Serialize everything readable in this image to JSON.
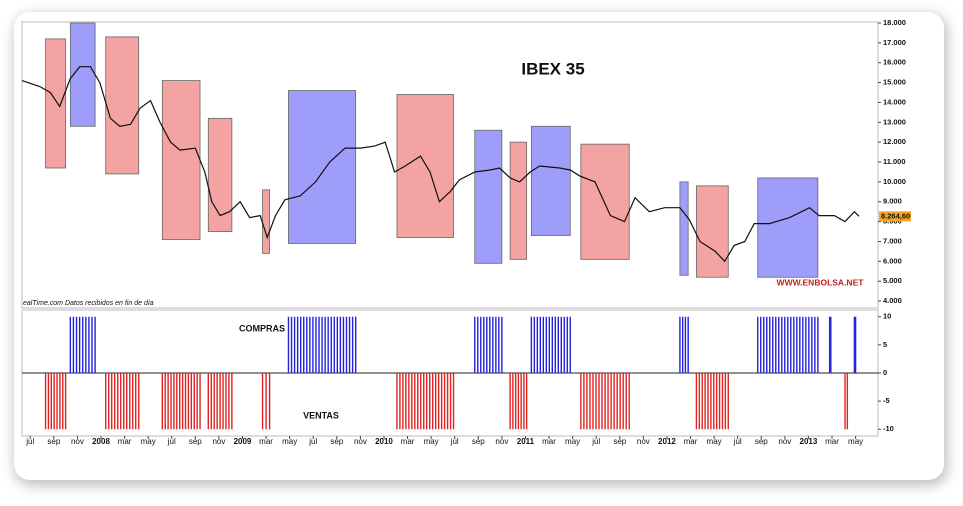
{
  "chart_data": [
    {
      "type": "line",
      "title": "IBEX 35",
      "watermark": "WWW.ENBOLSA.NET",
      "source": "ealTime.com  Datos recibidos en fin de día",
      "color": "#111111",
      "x": [
        -0.7,
        0.8,
        1.7,
        2.5,
        3.4,
        4.2,
        5.1,
        5.9,
        6.8,
        7.6,
        8.5,
        9.3,
        10.2,
        11.0,
        11.9,
        12.7,
        14.0,
        14.8,
        15.4,
        16.1,
        16.9,
        17.8,
        18.6,
        19.5,
        20.1,
        20.8,
        21.6,
        22.9,
        24.2,
        25.4,
        26.7,
        28.0,
        29.2,
        30.1,
        30.9,
        31.8,
        33.1,
        33.9,
        34.7,
        35.6,
        36.4,
        37.7,
        39.0,
        39.8,
        40.7,
        41.5,
        42.4,
        43.2,
        44.9,
        45.8,
        46.6,
        47.9,
        49.2,
        50.4,
        51.3,
        52.5,
        53.8,
        55.1,
        55.9,
        56.8,
        58.1,
        58.9,
        59.7,
        60.6,
        61.4,
        62.7,
        64.4,
        66.1,
        66.9,
        68.2,
        69.1,
        69.9,
        70.3
      ],
      "values": [
        15100,
        14800,
        14500,
        13800,
        15200,
        15800,
        15800,
        15000,
        13200,
        12800,
        12900,
        13700,
        14100,
        13000,
        12000,
        11600,
        11700,
        10500,
        9000,
        8300,
        8500,
        9000,
        8200,
        8300,
        7200,
        8300,
        9100,
        9300,
        10000,
        11000,
        11700,
        11700,
        11800,
        12000,
        10500,
        10800,
        11300,
        10500,
        9000,
        9500,
        10100,
        10500,
        10600,
        10700,
        10200,
        10000,
        10500,
        10800,
        10700,
        10600,
        10300,
        10000,
        8300,
        8000,
        9200,
        8500,
        8700,
        8700,
        8100,
        7000,
        6500,
        6000,
        6800,
        7000,
        7900,
        7900,
        8200,
        8700,
        8300,
        8300,
        8000,
        8500,
        8264.6
      ],
      "last_value": {
        "value": 8264.6,
        "label": "8.264,60"
      },
      "zones": [
        {
          "start": 1.3,
          "end": 3.0,
          "low": 10700,
          "high": 17200,
          "color": "#f4a3a3"
        },
        {
          "start": 3.4,
          "end": 5.5,
          "low": 12800,
          "high": 18000,
          "color": "#9e9efa"
        },
        {
          "start": 6.4,
          "end": 9.2,
          "low": 10400,
          "high": 17300,
          "color": "#f4a3a3"
        },
        {
          "start": 11.2,
          "end": 14.4,
          "low": 7100,
          "high": 15100,
          "color": "#f4a3a3"
        },
        {
          "start": 15.1,
          "end": 17.1,
          "low": 7500,
          "high": 13200,
          "color": "#f4a3a3"
        },
        {
          "start": 19.7,
          "end": 20.3,
          "low": 6400,
          "high": 9600,
          "color": "#f4a3a3"
        },
        {
          "start": 21.9,
          "end": 27.6,
          "low": 6900,
          "high": 14600,
          "color": "#9e9efa"
        },
        {
          "start": 31.1,
          "end": 35.9,
          "low": 7200,
          "high": 14400,
          "color": "#f4a3a3"
        },
        {
          "start": 37.7,
          "end": 40.0,
          "low": 5900,
          "high": 12600,
          "color": "#9e9efa"
        },
        {
          "start": 40.7,
          "end": 42.1,
          "low": 6100,
          "high": 12000,
          "color": "#f4a3a3"
        },
        {
          "start": 42.5,
          "end": 45.8,
          "low": 7300,
          "high": 12800,
          "color": "#9e9efa"
        },
        {
          "start": 46.7,
          "end": 50.8,
          "low": 6100,
          "high": 11900,
          "color": "#f4a3a3"
        },
        {
          "start": 55.1,
          "end": 55.8,
          "low": 5300,
          "high": 10000,
          "color": "#9e9efa"
        },
        {
          "start": 56.5,
          "end": 59.2,
          "low": 5200,
          "high": 9800,
          "color": "#f4a3a3"
        },
        {
          "start": 61.7,
          "end": 66.8,
          "low": 5200,
          "high": 10200,
          "color": "#9e9efa"
        }
      ],
      "xlim": [
        -0.7,
        71.9
      ],
      "ylim": [
        3650,
        18050
      ],
      "yticks": [
        {
          "value": 18000,
          "label": "18.000"
        },
        {
          "value": 17000,
          "label": "17.000"
        },
        {
          "value": 16000,
          "label": "16.000"
        },
        {
          "value": 15000,
          "label": "15.000"
        },
        {
          "value": 14000,
          "label": "14.000"
        },
        {
          "value": 13000,
          "label": "13.000"
        },
        {
          "value": 12000,
          "label": "12.000"
        },
        {
          "value": 11000,
          "label": "11.000"
        },
        {
          "value": 10000,
          "label": "10.000"
        },
        {
          "value": 9000,
          "label": "9.000"
        },
        {
          "value": 8000,
          "label": "8.000"
        },
        {
          "value": 7000,
          "label": "7.000"
        },
        {
          "value": 6000,
          "label": "6.000"
        },
        {
          "value": 5000,
          "label": "5.000"
        },
        {
          "value": 4000,
          "label": "4.000"
        }
      ]
    },
    {
      "type": "bar",
      "labels": [
        "COMPRAS",
        "VENTAS"
      ],
      "periods": [
        {
          "start": 3.4,
          "end": 5.5,
          "value": 10,
          "color": "#2222dd"
        },
        {
          "start": 21.9,
          "end": 27.6,
          "value": 10,
          "color": "#2222dd"
        },
        {
          "start": 37.7,
          "end": 40.0,
          "value": 10,
          "color": "#2222dd"
        },
        {
          "start": 42.5,
          "end": 45.8,
          "value": 10,
          "color": "#2222dd"
        },
        {
          "start": 55.1,
          "end": 55.8,
          "value": 10,
          "color": "#2222dd"
        },
        {
          "start": 61.7,
          "end": 66.8,
          "value": 10,
          "color": "#2222dd"
        },
        {
          "start": 67.8,
          "end": 67.9,
          "value": 10,
          "color": "#2222dd"
        },
        {
          "start": 69.9,
          "end": 70.0,
          "value": 10,
          "color": "#2222dd"
        },
        {
          "start": 1.3,
          "end": 3.0,
          "value": -10,
          "color": "#e02222"
        },
        {
          "start": 6.4,
          "end": 9.2,
          "value": -10,
          "color": "#e02222"
        },
        {
          "start": 11.2,
          "end": 14.4,
          "value": -10,
          "color": "#e02222"
        },
        {
          "start": 15.1,
          "end": 17.1,
          "value": -10,
          "color": "#e02222"
        },
        {
          "start": 19.7,
          "end": 20.3,
          "value": -10,
          "color": "#e02222"
        },
        {
          "start": 31.1,
          "end": 35.9,
          "value": -10,
          "color": "#e02222"
        },
        {
          "start": 40.7,
          "end": 42.1,
          "value": -10,
          "color": "#e02222"
        },
        {
          "start": 46.7,
          "end": 50.8,
          "value": -10,
          "color": "#e02222"
        },
        {
          "start": 56.5,
          "end": 59.2,
          "value": -10,
          "color": "#e02222"
        },
        {
          "start": 69.1,
          "end": 69.3,
          "value": -10,
          "color": "#e02222"
        }
      ],
      "xlim": [
        -0.7,
        71.9
      ],
      "ylim": [
        -11.2,
        11.2
      ],
      "yticks": [
        10,
        5,
        0,
        -5,
        -10
      ],
      "xticks": [
        {
          "value": 0,
          "label": "jul"
        },
        {
          "value": 2,
          "label": "sep"
        },
        {
          "value": 4,
          "label": "nov"
        },
        {
          "value": 6,
          "label": "2008"
        },
        {
          "value": 8,
          "label": "mar"
        },
        {
          "value": 10,
          "label": "may"
        },
        {
          "value": 12,
          "label": "jul"
        },
        {
          "value": 14,
          "label": "sep"
        },
        {
          "value": 16,
          "label": "nov"
        },
        {
          "value": 18,
          "label": "2009"
        },
        {
          "value": 20,
          "label": "mar"
        },
        {
          "value": 22,
          "label": "may"
        },
        {
          "value": 24,
          "label": "jul"
        },
        {
          "value": 26,
          "label": "sep"
        },
        {
          "value": 28,
          "label": "nov"
        },
        {
          "value": 30,
          "label": "2010"
        },
        {
          "value": 32,
          "label": "mar"
        },
        {
          "value": 34,
          "label": "may"
        },
        {
          "value": 36,
          "label": "jul"
        },
        {
          "value": 38,
          "label": "sep"
        },
        {
          "value": 40,
          "label": "nov"
        },
        {
          "value": 42,
          "label": "2011"
        },
        {
          "value": 44,
          "label": "mar"
        },
        {
          "value": 46,
          "label": "may"
        },
        {
          "value": 48,
          "label": "jul"
        },
        {
          "value": 50,
          "label": "sep"
        },
        {
          "value": 52,
          "label": "nov"
        },
        {
          "value": 54,
          "label": "2012"
        },
        {
          "value": 56,
          "label": "mar"
        },
        {
          "value": 58,
          "label": "may"
        },
        {
          "value": 60,
          "label": "jul"
        },
        {
          "value": 62,
          "label": "sep"
        },
        {
          "value": 64,
          "label": "nov"
        },
        {
          "value": 66,
          "label": "2013"
        },
        {
          "value": 68,
          "label": "mar"
        },
        {
          "value": 70,
          "label": "may"
        }
      ]
    }
  ]
}
